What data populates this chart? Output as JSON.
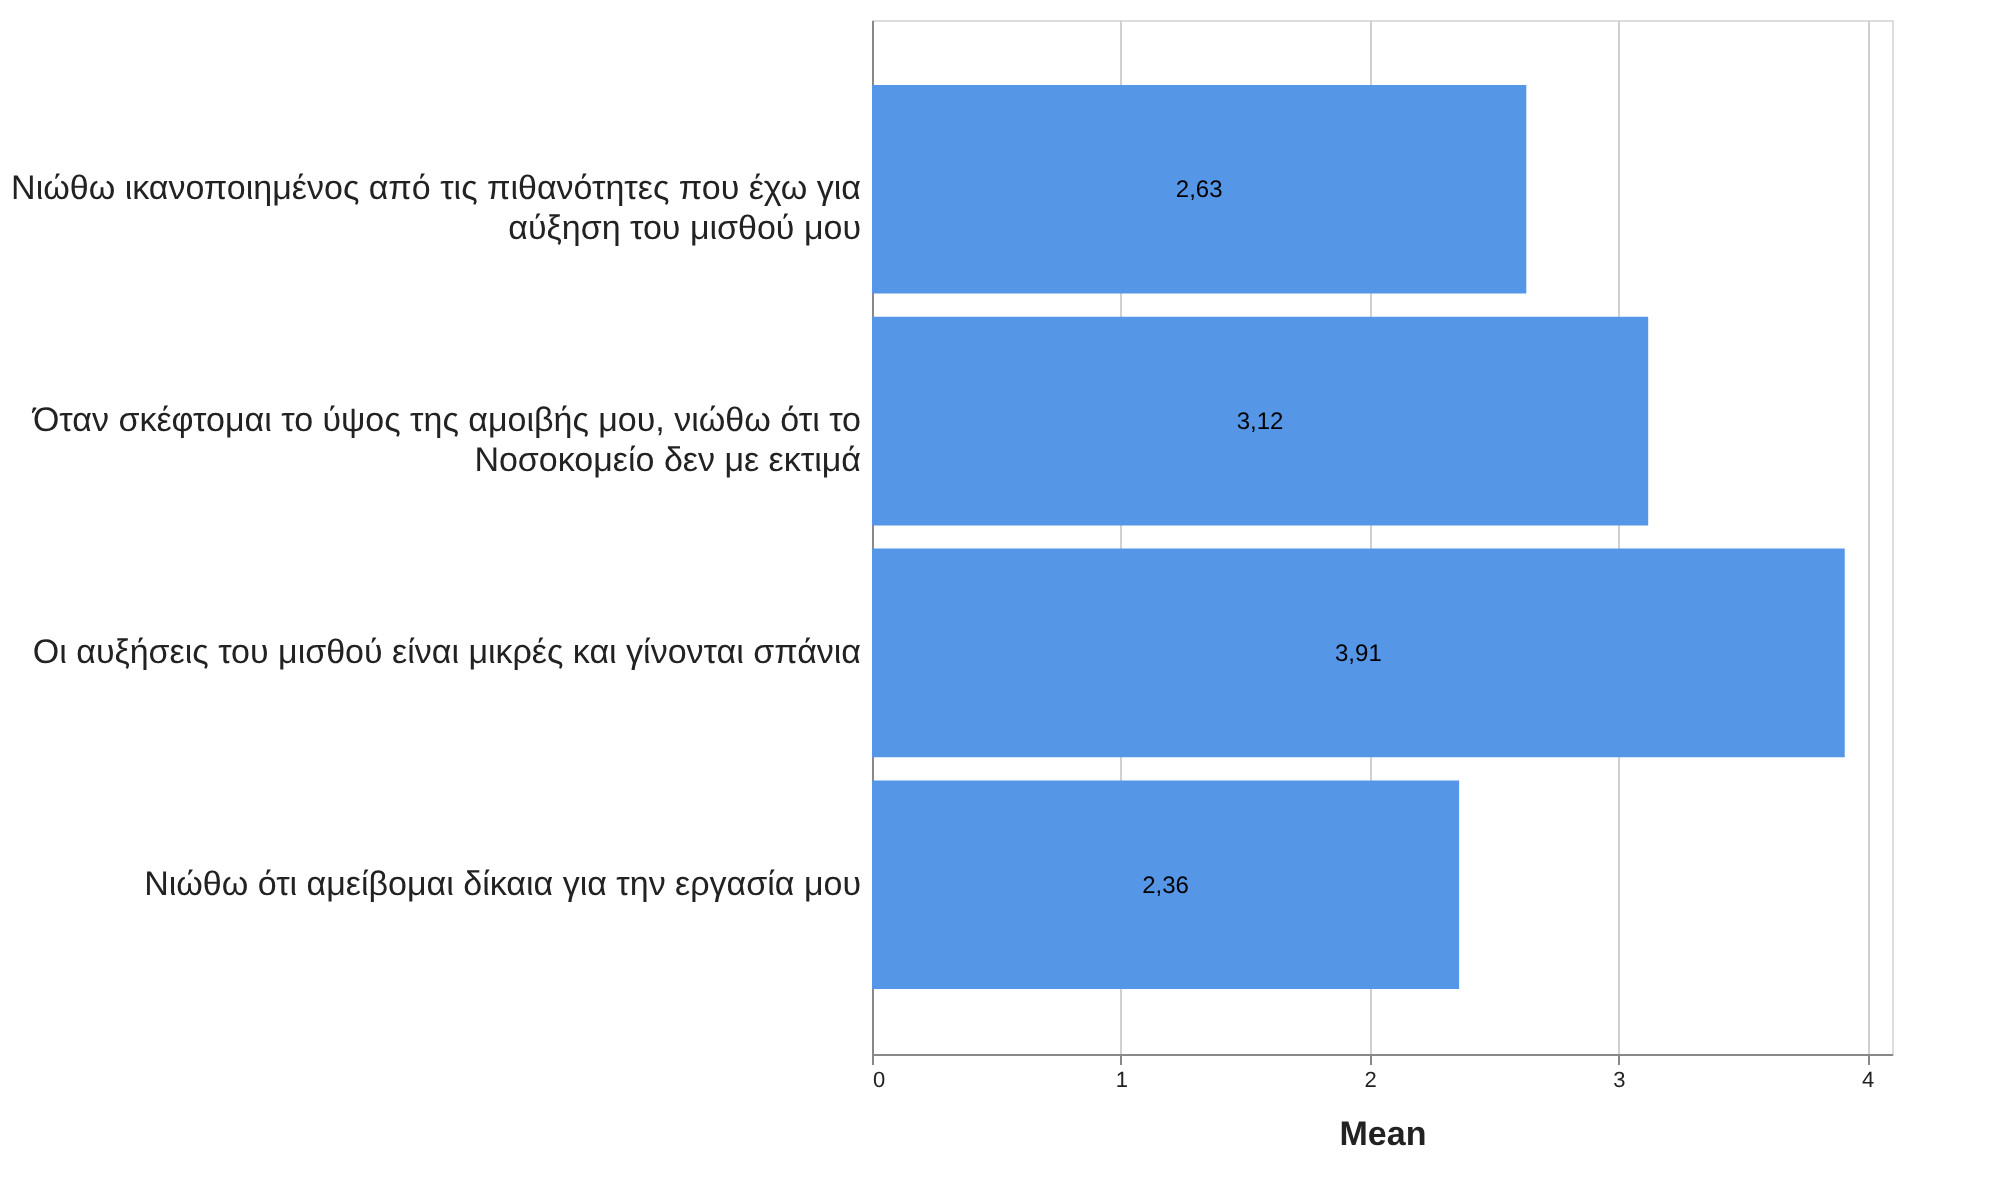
{
  "chart_data": {
    "type": "bar",
    "orientation": "horizontal",
    "categories": [
      "Νιώθω ικανοποιημένος από τις πιθανότητες που έχω για αύξηση του μισθού μου",
      "Όταν σκέφτομαι το ύψος της αμοιβής μου, νιώθω ότι το Νοσοκομείο δεν με εκτιμά",
      "Οι αυξήσεις του μισθού είναι μικρές και γίνονται σπάνια",
      "Νιώθω ότι αμείβομαι δίκαια για την εργασία μου"
    ],
    "values": [
      2.63,
      3.12,
      3.91,
      2.36
    ],
    "value_labels": [
      "2,63",
      "3,12",
      "3,91",
      "2,36"
    ],
    "color": "#5596e6",
    "xlabel": "Mean",
    "xlim": [
      0,
      4.1
    ],
    "xticks": [
      0,
      1,
      2,
      3,
      4
    ],
    "grid": "x"
  }
}
